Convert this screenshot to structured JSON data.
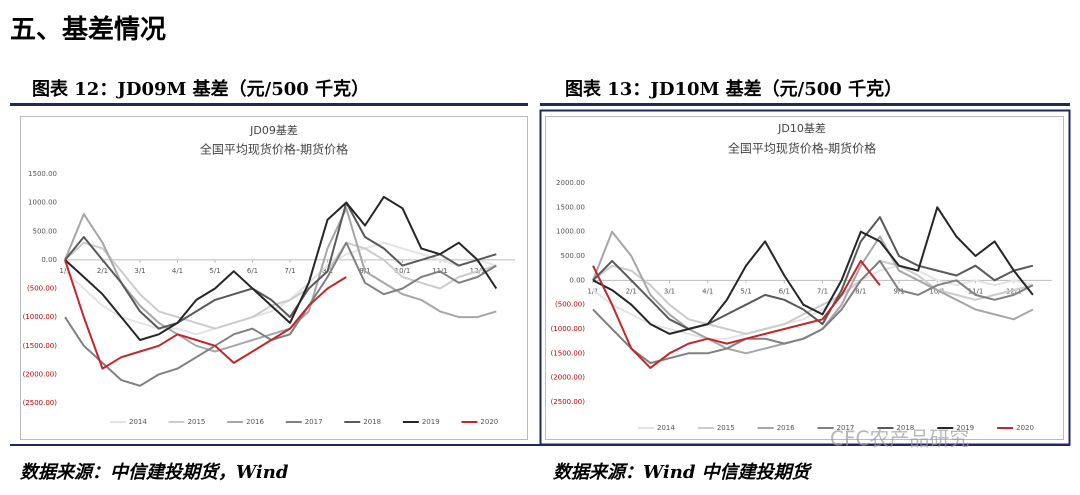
{
  "heading": "五、基差情况",
  "captions": [
    "图表 12：JD09M 基差（元/500 千克）",
    "图表 13：JD10M 基差（元/500 千克）"
  ],
  "sources": [
    "数据来源：中信建投期货，Wind",
    "数据来源：Wind 中信建投期货"
  ],
  "watermark": "CFC农产品研究",
  "chart_data": [
    {
      "type": "line",
      "title": "JD09基差",
      "subtitle": "全国平均现货价格-期货价格",
      "categories": [
        "1/1",
        null,
        "2/1",
        null,
        "3/1",
        null,
        "4/1",
        null,
        "5/1",
        null,
        "6/1",
        null,
        "7/1",
        null,
        "8/1",
        null,
        "9/1",
        null,
        "10/1",
        null,
        "11/1",
        null,
        "12/1",
        null
      ],
      "ylim": [
        -2500,
        1500
      ],
      "yticks": [
        {
          "value": 1500,
          "label": "1500.00"
        },
        {
          "value": 1000,
          "label": "1000.00"
        },
        {
          "value": 500,
          "label": "500.00"
        },
        {
          "value": 0,
          "label": "0.00"
        },
        {
          "value": -500,
          "label": "(500.00)"
        },
        {
          "value": -1000,
          "label": "(1000.00)"
        },
        {
          "value": -1500,
          "label": "(1500.00)"
        },
        {
          "value": -2000,
          "label": "(2000.00)"
        },
        {
          "value": -2500,
          "label": "(2500.00)"
        }
      ],
      "negative_tick_color": "#c00000",
      "legend": "bottom",
      "series": [
        {
          "name": "2014",
          "color": "#e3e3e3",
          "values": [
            -200,
            -500,
            -800,
            -1000,
            -1100,
            -1200,
            -1200,
            -1300,
            -1200,
            -1100,
            -1000,
            -900,
            -700,
            -400,
            -100,
            100,
            200,
            300,
            200,
            100,
            0,
            -100,
            0,
            -100
          ]
        },
        {
          "name": "2015",
          "color": "#cccccc",
          "values": [
            0,
            300,
            200,
            -200,
            -600,
            -900,
            -1000,
            -1100,
            -1200,
            -1100,
            -1000,
            -800,
            -700,
            -500,
            -200,
            300,
            200,
            0,
            -300,
            -400,
            -500,
            -300,
            -200,
            -100
          ]
        },
        {
          "name": "2016",
          "color": "#a6a6a6",
          "values": [
            0,
            800,
            300,
            -400,
            -800,
            -1100,
            -1300,
            -1500,
            -1600,
            -1500,
            -1400,
            -1300,
            -1200,
            -900,
            200,
            900,
            -200,
            -400,
            -600,
            -700,
            -900,
            -1000,
            -1000,
            -900
          ]
        },
        {
          "name": "2017",
          "color": "#808080",
          "values": [
            -1000,
            -1500,
            -1800,
            -2100,
            -2200,
            -2000,
            -1900,
            -1700,
            -1500,
            -1300,
            -1200,
            -1400,
            -1300,
            -800,
            -300,
            300,
            -400,
            -600,
            -500,
            -300,
            -200,
            -400,
            -300,
            -100
          ]
        },
        {
          "name": "2018",
          "color": "#595959",
          "values": [
            0,
            400,
            0,
            -400,
            -900,
            -1200,
            -1100,
            -900,
            -700,
            -600,
            -500,
            -700,
            -1000,
            -500,
            -200,
            1000,
            400,
            200,
            -100,
            0,
            100,
            -100,
            0,
            100
          ]
        },
        {
          "name": "2019",
          "color": "#262626",
          "values": [
            0,
            -300,
            -600,
            -1000,
            -1400,
            -1300,
            -1100,
            -700,
            -500,
            -200,
            -500,
            -800,
            -1100,
            -400,
            700,
            1000,
            600,
            1100,
            900,
            200,
            100,
            300,
            0,
            -500
          ]
        },
        {
          "name": "2020",
          "color": "#c0282d",
          "values": [
            0,
            -1000,
            -1900,
            -1700,
            -1600,
            -1500,
            -1300,
            -1400,
            -1500,
            -1800,
            -1600,
            -1400,
            -1200,
            -800,
            -500,
            -300,
            null,
            null,
            null,
            null,
            null,
            null,
            null,
            null
          ]
        }
      ]
    },
    {
      "type": "line",
      "title": "JD10基差",
      "subtitle": "全国平均现货价格-期货价格",
      "categories": [
        "1/1",
        null,
        "2/1",
        null,
        "3/1",
        null,
        "4/1",
        null,
        "5/1",
        null,
        "6/1",
        null,
        "7/1",
        null,
        "8/1",
        null,
        "9/1",
        null,
        "10/1",
        null,
        "11/1",
        null,
        "12/1",
        null
      ],
      "ylim": [
        -2500,
        2000
      ],
      "yticks": [
        {
          "value": 2000,
          "label": "2000.00"
        },
        {
          "value": 1500,
          "label": "1500.00"
        },
        {
          "value": 1000,
          "label": "1000.00"
        },
        {
          "value": 500,
          "label": "500.00"
        },
        {
          "value": 0,
          "label": "0.00"
        },
        {
          "value": -500,
          "label": "(500.00)"
        },
        {
          "value": -1000,
          "label": "(1000.00)"
        },
        {
          "value": -1500,
          "label": "(1500.00)"
        },
        {
          "value": -2000,
          "label": "(2000.00)"
        },
        {
          "value": -2500,
          "label": "(2500.00)"
        }
      ],
      "negative_tick_color": "#c00000",
      "legend": "bottom",
      "series": [
        {
          "name": "2014",
          "color": "#e3e3e3",
          "values": [
            -200,
            -500,
            -700,
            -900,
            -1000,
            -1100,
            -1200,
            -1200,
            -1100,
            -1000,
            -900,
            -800,
            -600,
            -300,
            0,
            200,
            300,
            200,
            0,
            -100,
            0,
            -100,
            0,
            -100
          ]
        },
        {
          "name": "2015",
          "color": "#cccccc",
          "values": [
            0,
            300,
            200,
            -100,
            -500,
            -800,
            -900,
            -1000,
            -1100,
            -1000,
            -900,
            -700,
            -500,
            -300,
            0,
            400,
            300,
            100,
            -200,
            -300,
            -400,
            -300,
            -200,
            -100
          ]
        },
        {
          "name": "2016",
          "color": "#a6a6a6",
          "values": [
            0,
            1000,
            500,
            -300,
            -700,
            -1000,
            -1200,
            -1400,
            -1500,
            -1400,
            -1300,
            -1200,
            -1000,
            -500,
            300,
            900,
            200,
            0,
            -200,
            -400,
            -600,
            -700,
            -800,
            -600
          ]
        },
        {
          "name": "2017",
          "color": "#808080",
          "values": [
            -600,
            -1000,
            -1400,
            -1700,
            -1600,
            -1500,
            -1500,
            -1400,
            -1200,
            -1200,
            -1300,
            -1200,
            -1000,
            -600,
            0,
            400,
            -200,
            -300,
            -100,
            0,
            -300,
            -400,
            -300,
            -100
          ]
        },
        {
          "name": "2018",
          "color": "#595959",
          "values": [
            0,
            400,
            0,
            -400,
            -800,
            -1000,
            -900,
            -700,
            -500,
            -300,
            -400,
            -600,
            -900,
            -200,
            800,
            1300,
            500,
            300,
            200,
            100,
            300,
            0,
            200,
            300
          ]
        },
        {
          "name": "2019",
          "color": "#262626",
          "values": [
            0,
            -200,
            -500,
            -900,
            -1100,
            -1000,
            -900,
            -400,
            300,
            800,
            100,
            -500,
            -700,
            0,
            1000,
            800,
            300,
            200,
            1500,
            900,
            500,
            800,
            200,
            -300
          ]
        },
        {
          "name": "2020",
          "color": "#c0282d",
          "values": [
            300,
            -500,
            -1400,
            -1800,
            -1500,
            -1300,
            -1200,
            -1300,
            -1200,
            -1100,
            -1000,
            -900,
            -800,
            -300,
            400,
            -100,
            null,
            null,
            null,
            null,
            null,
            null,
            null,
            null
          ]
        }
      ]
    }
  ]
}
